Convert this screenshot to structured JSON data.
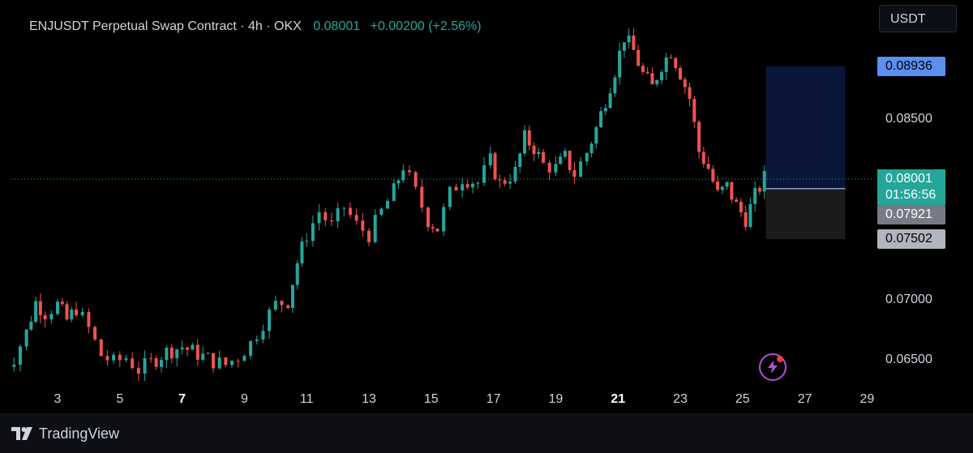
{
  "legend": {
    "symbol": "ENJUSDT Perpetual Swap Contract · 4h · OKX",
    "last": "0.08001",
    "change": "+0.00200 (+2.56%)"
  },
  "currency": "USDT",
  "footer": {
    "brand": "TradingView"
  },
  "colors": {
    "up": "#26a69a",
    "down": "#ef5350",
    "target": "#5b8ff0",
    "stop": "#d1d4dc",
    "entry": "#26a69a"
  },
  "chart_data": {
    "type": "candlestick",
    "ylim": [
      0.0626,
      0.0935
    ],
    "y_ticks": [
      "0.06500",
      "0.07000",
      "0.08500"
    ],
    "y_tick_values": [
      0.065,
      0.07,
      0.085
    ],
    "x_ticks": [
      "3",
      "5",
      "7",
      "9",
      "11",
      "13",
      "15",
      "17",
      "19",
      "21",
      "23",
      "25",
      "27",
      "29"
    ],
    "x_tick_days": [
      3,
      5,
      7,
      9,
      11,
      13,
      15,
      17,
      19,
      21,
      23,
      25,
      27,
      29
    ],
    "x_bold": [
      "7",
      "21"
    ],
    "price_labels": [
      {
        "text": "0.08936",
        "value": 0.08936,
        "kind": "target"
      },
      {
        "text": "0.08001",
        "value": 0.08001,
        "kind": "last"
      },
      {
        "text": "01:56:56",
        "value": 0.07935,
        "kind": "countdown"
      },
      {
        "text": "0.07921",
        "value": 0.07921,
        "kind": "entry"
      },
      {
        "text": "0.07502",
        "value": 0.07502,
        "kind": "stop"
      }
    ],
    "position": {
      "entry": 0.07921,
      "target": 0.08936,
      "stop": 0.07502
    },
    "last_price": 0.08001,
    "series": [
      {
        "day": 1.1,
        "close": 0.064
      },
      {
        "day": 1.6,
        "close": 0.0652
      },
      {
        "day": 2.0,
        "close": 0.0673
      },
      {
        "day": 2.3,
        "close": 0.0698
      },
      {
        "day": 2.6,
        "close": 0.0689
      },
      {
        "day": 3.0,
        "close": 0.0696
      },
      {
        "day": 3.3,
        "close": 0.0683
      },
      {
        "day": 3.6,
        "close": 0.0693
      },
      {
        "day": 4.0,
        "close": 0.0676
      },
      {
        "day": 4.4,
        "close": 0.0654
      },
      {
        "day": 4.8,
        "close": 0.0648
      },
      {
        "day": 5.2,
        "close": 0.0652
      },
      {
        "day": 5.6,
        "close": 0.0642
      },
      {
        "day": 6.0,
        "close": 0.0648
      },
      {
        "day": 6.5,
        "close": 0.0657
      },
      {
        "day": 7.0,
        "close": 0.0661
      },
      {
        "day": 7.5,
        "close": 0.0655
      },
      {
        "day": 8.0,
        "close": 0.0649
      },
      {
        "day": 8.4,
        "close": 0.0646
      },
      {
        "day": 8.8,
        "close": 0.0653
      },
      {
        "day": 9.2,
        "close": 0.0664
      },
      {
        "day": 9.6,
        "close": 0.0681
      },
      {
        "day": 10.0,
        "close": 0.0696
      },
      {
        "day": 10.4,
        "close": 0.0699
      },
      {
        "day": 10.7,
        "close": 0.0731
      },
      {
        "day": 11.0,
        "close": 0.0754
      },
      {
        "day": 11.4,
        "close": 0.0773
      },
      {
        "day": 11.8,
        "close": 0.0761
      },
      {
        "day": 12.2,
        "close": 0.0777
      },
      {
        "day": 12.6,
        "close": 0.0762
      },
      {
        "day": 13.0,
        "close": 0.0754
      },
      {
        "day": 13.4,
        "close": 0.0773
      },
      {
        "day": 13.8,
        "close": 0.079
      },
      {
        "day": 14.1,
        "close": 0.0811
      },
      {
        "day": 14.5,
        "close": 0.0789
      },
      {
        "day": 14.9,
        "close": 0.0766
      },
      {
        "day": 15.2,
        "close": 0.0759
      },
      {
        "day": 15.6,
        "close": 0.0788
      },
      {
        "day": 16.0,
        "close": 0.0801
      },
      {
        "day": 16.5,
        "close": 0.0797
      },
      {
        "day": 16.9,
        "close": 0.0815
      },
      {
        "day": 17.2,
        "close": 0.0796
      },
      {
        "day": 17.7,
        "close": 0.0806
      },
      {
        "day": 18.0,
        "close": 0.0834
      },
      {
        "day": 18.3,
        "close": 0.0826
      },
      {
        "day": 18.6,
        "close": 0.0812
      },
      {
        "day": 19.0,
        "close": 0.0809
      },
      {
        "day": 19.3,
        "close": 0.0818
      },
      {
        "day": 19.6,
        "close": 0.0804
      },
      {
        "day": 20.0,
        "close": 0.0822
      },
      {
        "day": 20.3,
        "close": 0.0842
      },
      {
        "day": 20.6,
        "close": 0.0866
      },
      {
        "day": 20.9,
        "close": 0.089
      },
      {
        "day": 21.2,
        "close": 0.0918
      },
      {
        "day": 21.5,
        "close": 0.0906
      },
      {
        "day": 21.8,
        "close": 0.0887
      },
      {
        "day": 22.1,
        "close": 0.0876
      },
      {
        "day": 22.4,
        "close": 0.0895
      },
      {
        "day": 22.7,
        "close": 0.0906
      },
      {
        "day": 23.0,
        "close": 0.0888
      },
      {
        "day": 23.3,
        "close": 0.0867
      },
      {
        "day": 23.6,
        "close": 0.0823
      },
      {
        "day": 23.9,
        "close": 0.0809
      },
      {
        "day": 24.2,
        "close": 0.0787
      },
      {
        "day": 24.5,
        "close": 0.0794
      },
      {
        "day": 24.8,
        "close": 0.0778
      },
      {
        "day": 25.1,
        "close": 0.0767
      },
      {
        "day": 25.4,
        "close": 0.0786
      },
      {
        "day": 25.7,
        "close": 0.0801
      }
    ]
  }
}
